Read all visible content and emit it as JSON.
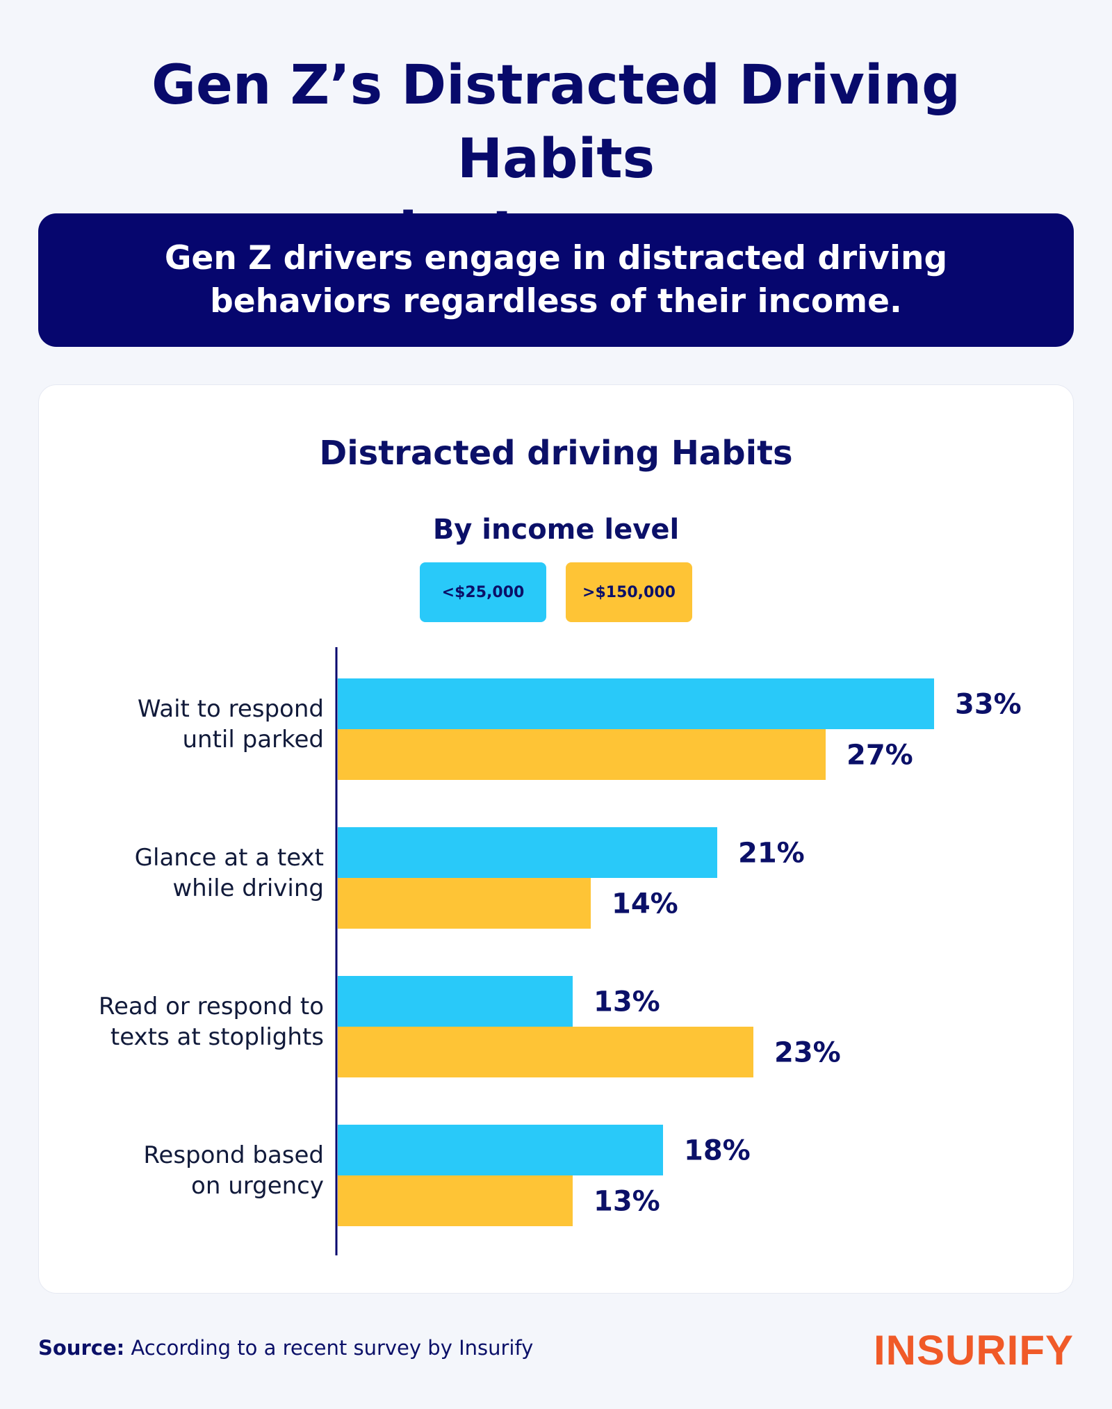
{
  "header": {
    "title_line1": "Gen Z’s Distracted Driving Habits",
    "title_line2": "by Income"
  },
  "banner": {
    "text": "Gen Z drivers engage in distracted driving behaviors regardless of their income."
  },
  "chart_data": {
    "type": "bar",
    "orientation": "horizontal",
    "title": "Distracted driving Habits",
    "subtitle": "By income level",
    "categories": [
      [
        "Wait to respond",
        "until parked"
      ],
      [
        "Glance at a text",
        "while driving"
      ],
      [
        "Read or respond to",
        "texts at stoplights"
      ],
      [
        "Respond based",
        "on urgency"
      ]
    ],
    "series": [
      {
        "name": "<$25,000",
        "color": "#29c9f9",
        "values": [
          33,
          21,
          13,
          18
        ],
        "labels": [
          "33%",
          "21%",
          "13%",
          "18%"
        ]
      },
      {
        "name": ">$150,000",
        "color": "#fec436",
        "values": [
          27,
          14,
          23,
          13
        ],
        "labels": [
          "27%",
          "14%",
          "23%",
          "13%"
        ]
      }
    ],
    "unit": "%",
    "xlim": [
      0,
      33
    ],
    "grid": false,
    "legend_position": "top-center"
  },
  "footer": {
    "source_label": "Source:",
    "source_text": " According to a recent survey by Insurify",
    "logo": "INSURIFY"
  },
  "colors": {
    "navy": "#06066e",
    "cyan": "#29c9f9",
    "yellow": "#fec436",
    "brand_orange": "#f05a28"
  }
}
